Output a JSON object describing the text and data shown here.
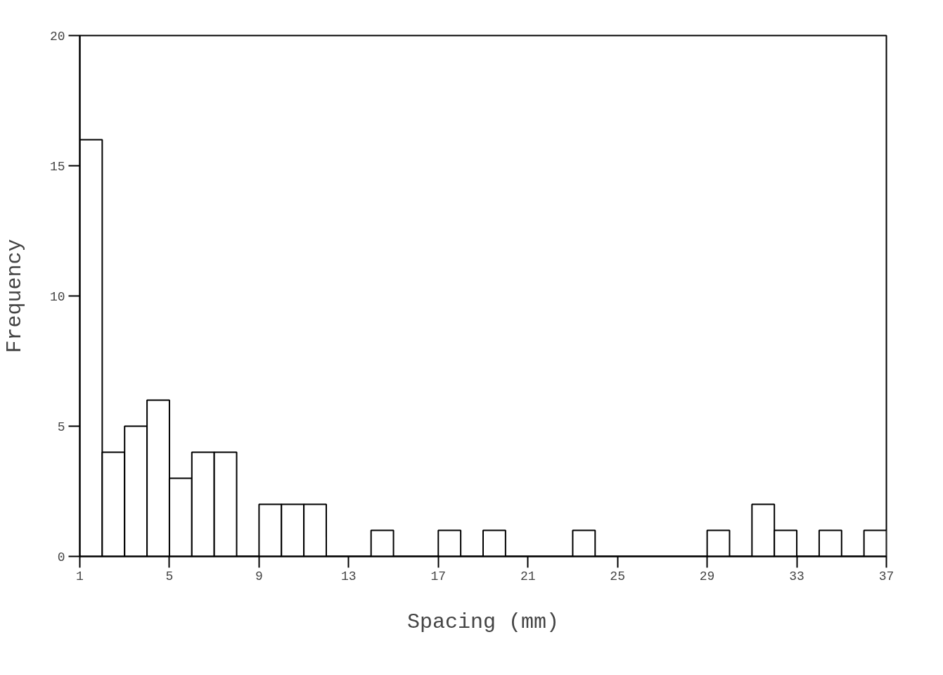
{
  "chart_data": {
    "type": "histogram",
    "xlabel": "Spacing (mm)",
    "ylabel": "Frequency",
    "bins": [
      1,
      2,
      3,
      4,
      5,
      6,
      7,
      8,
      9,
      10,
      11,
      12,
      13,
      14,
      15,
      16,
      17,
      18,
      19,
      20,
      21,
      22,
      23,
      24,
      25,
      26,
      27,
      28,
      29,
      30,
      31,
      32,
      33,
      34,
      35,
      36,
      37
    ],
    "values": [
      16,
      4,
      5,
      6,
      3,
      4,
      4,
      0,
      2,
      2,
      2,
      0,
      0,
      1,
      0,
      0,
      1,
      0,
      1,
      0,
      0,
      0,
      1,
      0,
      0,
      0,
      0,
      0,
      1,
      0,
      2,
      1,
      0,
      1,
      0,
      1
    ],
    "color": "#ffffff",
    "xlim": [
      1,
      37
    ],
    "xticks": [
      1,
      5,
      9,
      13,
      17,
      21,
      25,
      29,
      33,
      37
    ],
    "ylim": [
      0,
      20
    ],
    "yticks": [
      0,
      5,
      10,
      15,
      20
    ],
    "grid": false
  }
}
